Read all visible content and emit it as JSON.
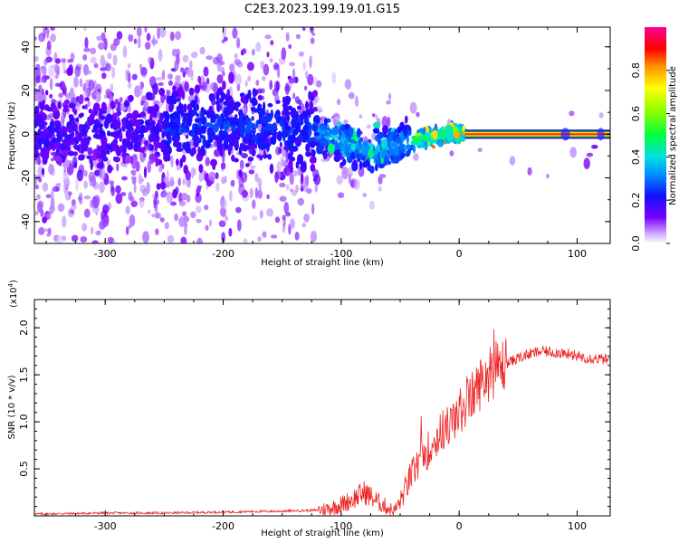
{
  "figure_title": "C2E3.2023.199.19.01.G15",
  "colors": {
    "snr_line": "#ee2222",
    "band_edge": "#00aa00",
    "band_center": "#ff2222",
    "cmap": [
      "#ffffff",
      "#e8d8ff",
      "#a070ff",
      "#6600ff",
      "#1a10ff",
      "#00a0ff",
      "#00ffcc",
      "#40ff00",
      "#ffff00",
      "#ff8000",
      "#ff0000",
      "#ff0080"
    ]
  },
  "chart_data": [
    {
      "type": "heatmap",
      "title": "",
      "xlabel": "Height of straight line (km)",
      "ylabel": "Frequency (Hz)",
      "xlim": [
        -360,
        128
      ],
      "ylim": [
        -50,
        49
      ],
      "x_ticks": [
        -300,
        -200,
        -100,
        0,
        100
      ],
      "y_ticks": [
        -40,
        -20,
        0,
        20,
        40
      ],
      "colorbar": {
        "label": "Normalized spectral amplitude",
        "range": [
          0,
          1
        ],
        "ticks": [
          0.0,
          0.2,
          0.4,
          0.6,
          0.8
        ]
      },
      "ridge": {
        "x": [
          -360,
          -300,
          -250,
          -200,
          -160,
          -120,
          -100,
          -80,
          -70,
          -60,
          -50,
          -40,
          -30,
          -20,
          -10,
          0,
          10,
          128
        ],
        "y": [
          0,
          1,
          3,
          4,
          3,
          1,
          -3,
          -7,
          -8,
          -6,
          -5,
          -3,
          -2,
          -1,
          0,
          1,
          0,
          0
        ]
      },
      "carrier_band": {
        "x_start": 5,
        "x_end": 128,
        "y_center": 0,
        "half_width": 1.5
      }
    },
    {
      "type": "line",
      "title": "",
      "xlabel": "Height of straight line (km)",
      "ylabel": "SNR (10 * v/v)",
      "y_multiplier_label": "(x10",
      "y_multiplier_exp": "4",
      "y_multiplier_close": ")",
      "xlim": [
        -360,
        128
      ],
      "ylim": [
        0,
        2.3
      ],
      "x_ticks": [
        -300,
        -200,
        -100,
        0,
        100
      ],
      "y_ticks": [
        0.5,
        1.0,
        1.5,
        2.0
      ],
      "series": [
        {
          "x": [
            -360,
            -300,
            -250,
            -200,
            -150,
            -120,
            -110,
            -100,
            -90,
            -80,
            -70,
            -60,
            -55,
            -50,
            -45,
            -40,
            -35,
            -30,
            -25,
            -20,
            -15,
            -10,
            -5,
            0,
            5,
            10,
            15,
            20,
            25,
            30,
            40,
            50,
            60,
            70,
            80,
            90,
            95,
            100,
            110,
            120,
            128
          ],
          "y": [
            0.02,
            0.03,
            0.03,
            0.04,
            0.05,
            0.06,
            0.08,
            0.12,
            0.18,
            0.25,
            0.16,
            0.08,
            0.05,
            0.15,
            0.3,
            0.45,
            0.55,
            0.65,
            0.72,
            0.8,
            0.9,
            0.95,
            1.0,
            1.1,
            1.18,
            1.25,
            1.35,
            1.45,
            1.5,
            1.55,
            1.62,
            1.68,
            1.72,
            1.75,
            1.74,
            1.73,
            1.72,
            1.7,
            1.68,
            1.67,
            1.65
          ]
        }
      ]
    }
  ]
}
